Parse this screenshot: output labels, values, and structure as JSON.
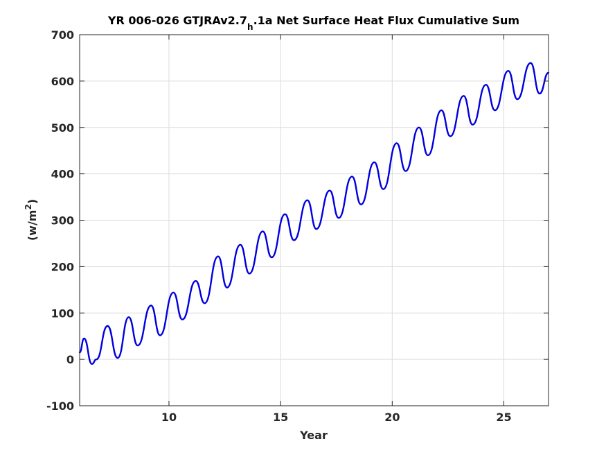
{
  "chart_data": {
    "type": "line",
    "title": {
      "main": "YR 006-026 GTJRAv2.7",
      "subscript": "h",
      "rest": ".1a Net Surface Heat Flux  Cumulative Sum"
    },
    "xlabel": "Year",
    "ylabel": {
      "prefix": "(w/m",
      "superscript": "2",
      "suffix": ")"
    },
    "xlim": [
      6,
      27
    ],
    "ylim": [
      -100,
      700
    ],
    "xticks": [
      10,
      15,
      20,
      25
    ],
    "xtick_labels": [
      "10",
      "15",
      "20",
      "25"
    ],
    "yticks": [
      -100,
      0,
      100,
      200,
      300,
      400,
      500,
      600,
      700
    ],
    "ytick_labels": [
      "-100",
      "0",
      "100",
      "200",
      "300",
      "400",
      "500",
      "600",
      "700"
    ],
    "grid": true,
    "series": [
      {
        "color": "#0000e0",
        "x": [
          6.0,
          6.2,
          6.55,
          6.75,
          7.25,
          7.7,
          8.2,
          8.6,
          9.2,
          9.6,
          10.2,
          10.6,
          11.2,
          11.6,
          12.2,
          12.6,
          13.2,
          13.6,
          14.2,
          14.6,
          15.2,
          15.6,
          16.2,
          16.6,
          17.2,
          17.6,
          18.2,
          18.6,
          19.2,
          19.6,
          20.2,
          20.6,
          21.2,
          21.6,
          22.2,
          22.6,
          23.2,
          23.6,
          24.2,
          24.6,
          25.2,
          25.6,
          26.2,
          26.6,
          27.0
        ],
        "y": [
          15,
          45,
          -10,
          0,
          72,
          3,
          91,
          30,
          116,
          52,
          144,
          86,
          169,
          121,
          222,
          155,
          247,
          185,
          276,
          220,
          313,
          257,
          343,
          281,
          364,
          305,
          394,
          334,
          425,
          367,
          466,
          406,
          500,
          440,
          537,
          481,
          568,
          506,
          592,
          537,
          622,
          561,
          639,
          573,
          618
        ]
      }
    ]
  }
}
